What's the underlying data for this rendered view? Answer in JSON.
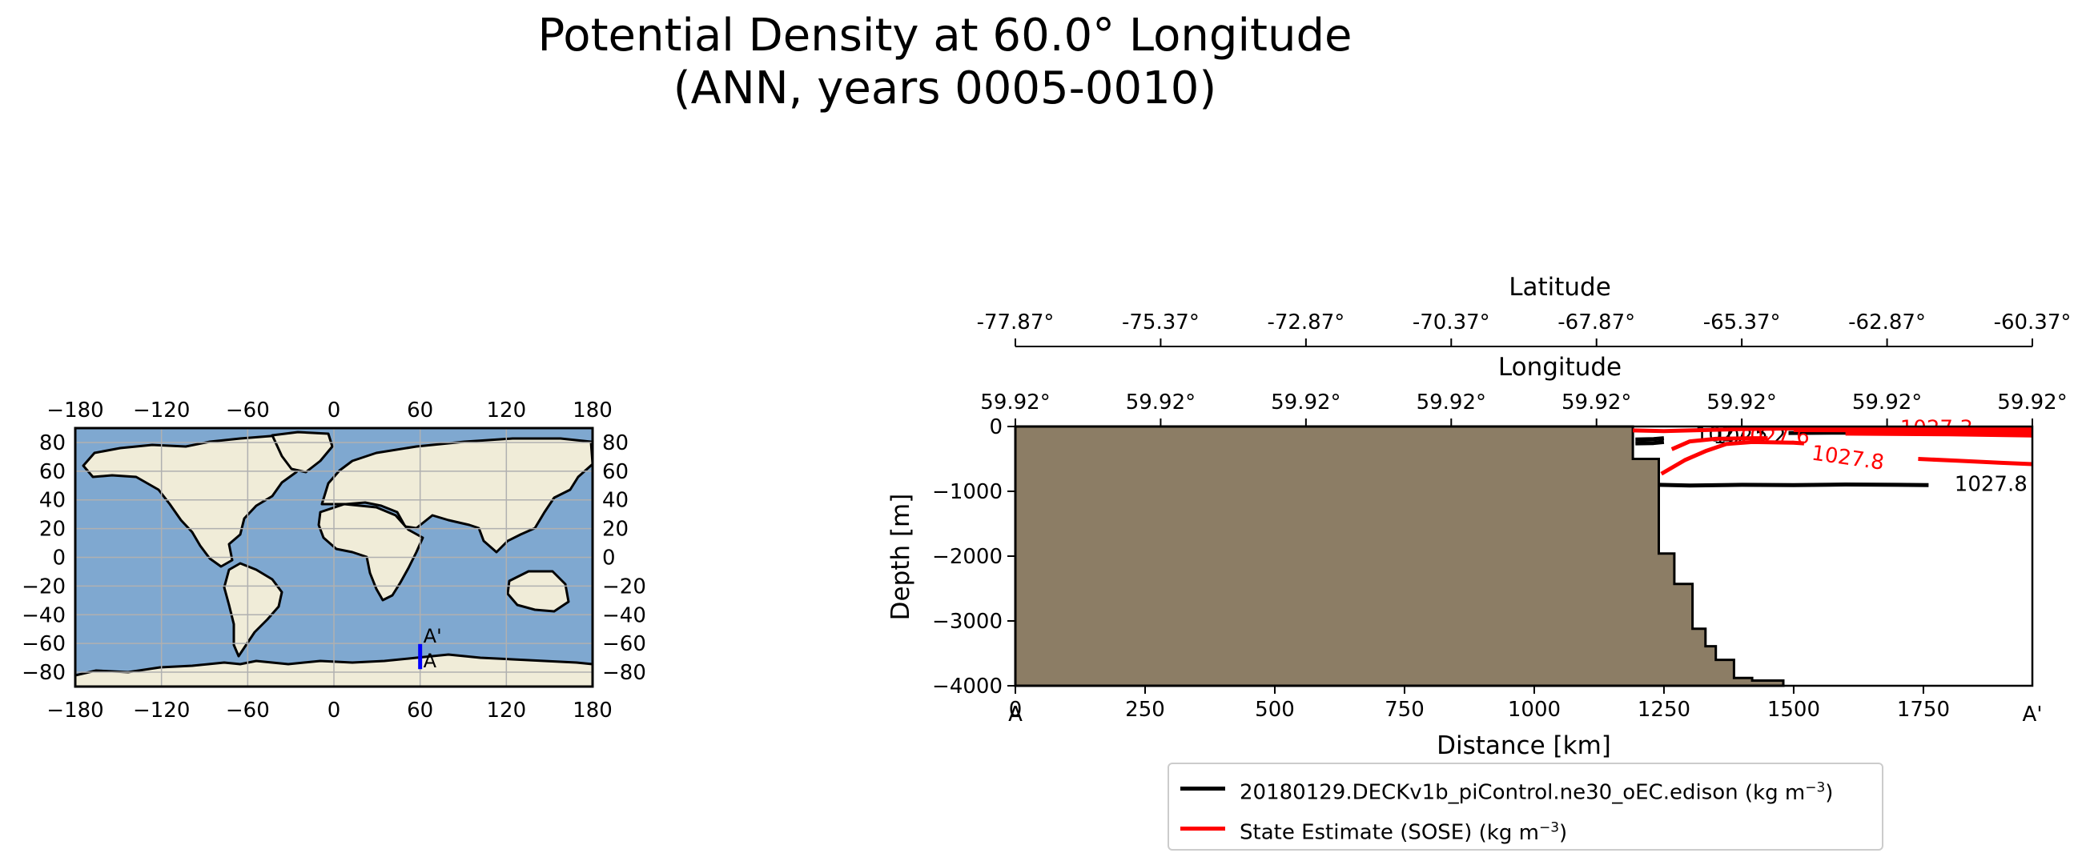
{
  "figure": {
    "title_line1": "Potential Density at 60.0° Longitude",
    "title_line2": "(ANN, years 0005-0010)"
  },
  "colors": {
    "ocean": "#7fa8d0",
    "land": "#f0ecd8",
    "bathymetry": "#8c7d65",
    "model_contour": "#000000",
    "obs_contour": "#ff0000",
    "transect": "#0000ff"
  },
  "map": {
    "lon_ticks": [
      "−180",
      "−120",
      "−60",
      "0",
      "60",
      "120",
      "180"
    ],
    "lat_ticks": [
      "80",
      "60",
      "40",
      "20",
      "0",
      "−20",
      "−40",
      "−60",
      "−80"
    ],
    "lon_values": [
      -180,
      -120,
      -60,
      0,
      60,
      120,
      180
    ],
    "lat_values": [
      80,
      60,
      40,
      20,
      0,
      -20,
      -40,
      -60,
      -80
    ],
    "transect": {
      "lon": 60,
      "lat_start": -77.87,
      "lat_end": -60.37,
      "start_label": "A",
      "end_label": "A'"
    }
  },
  "chart_data": {
    "type": "line",
    "title": "Potential Density at 60.0° Longitude (ANN, years 0005-0010)",
    "xlabel": "Distance [km]",
    "ylabel": "Depth [m]",
    "xlim": [
      0,
      1960
    ],
    "ylim": [
      -4000,
      0
    ],
    "x_ticks": [
      0,
      250,
      500,
      750,
      1000,
      1250,
      1500,
      1750
    ],
    "x_tick_labels": [
      "0",
      "250",
      "500",
      "750",
      "1000",
      "1250",
      "1500",
      "1750"
    ],
    "y_ticks": [
      0,
      -1000,
      -2000,
      -3000,
      -4000
    ],
    "y_tick_labels": [
      "0",
      "−1000",
      "−2000",
      "−3000",
      "−4000"
    ],
    "start_label": "A",
    "end_label": "A'",
    "top_axes": [
      {
        "label": "Latitude",
        "tick_labels": [
          "-77.87°",
          "-75.37°",
          "-72.87°",
          "-70.37°",
          "-67.87°",
          "-65.37°",
          "-62.87°",
          "-60.37°"
        ]
      },
      {
        "label": "Longitude",
        "tick_labels": [
          "59.92°",
          "59.92°",
          "59.92°",
          "59.92°",
          "59.92°",
          "59.92°",
          "59.92°",
          "59.92°"
        ]
      }
    ],
    "bathymetry": [
      [
        0,
        -4000
      ],
      [
        0,
        0
      ],
      [
        1190,
        0
      ],
      [
        1190,
        -500
      ],
      [
        1240,
        -500
      ],
      [
        1240,
        -1960
      ],
      [
        1270,
        -1960
      ],
      [
        1270,
        -2430
      ],
      [
        1305,
        -2430
      ],
      [
        1305,
        -3120
      ],
      [
        1330,
        -3120
      ],
      [
        1330,
        -3390
      ],
      [
        1350,
        -3390
      ],
      [
        1350,
        -3600
      ],
      [
        1385,
        -3600
      ],
      [
        1385,
        -3880
      ],
      [
        1420,
        -3880
      ],
      [
        1420,
        -3920
      ],
      [
        1480,
        -3920
      ],
      [
        1480,
        -4000
      ]
    ],
    "series": [
      {
        "name": "20180129.DECKv1b_piControl.ne30_oEC.edison",
        "units_base": "(kg m",
        "units_exp": "−3",
        "units_close": ")",
        "color": "#000000",
        "contours": [
          {
            "level": "1027.8",
            "label_at": [
              1810,
              -880
            ],
            "points": [
              [
                1240,
                -900
              ],
              [
                1300,
                -910
              ],
              [
                1400,
                -900
              ],
              [
                1500,
                -905
              ],
              [
                1600,
                -895
              ],
              [
                1700,
                -900
              ],
              [
                1760,
                -905
              ]
            ]
          },
          {
            "level": "1027.5",
            "label_at": [
              1310,
              -120
            ],
            "points": [
              [
                1195,
                -200
              ],
              [
                1230,
                -195
              ],
              [
                1250,
                -180
              ]
            ]
          },
          {
            "level": "1027.2",
            "label_at": [
              1345,
              -150
            ],
            "points": [
              [
                1195,
                -260
              ],
              [
                1230,
                -255
              ],
              [
                1250,
                -240
              ]
            ]
          },
          {
            "level": "1027.6",
            "label_at": null,
            "points": [
              [
                1490,
                -100
              ],
              [
                1600,
                -95
              ],
              [
                1700,
                -92
              ],
              [
                1820,
                -90
              ],
              [
                1960,
                -88
              ]
            ]
          }
        ]
      },
      {
        "name": "State Estimate (SOSE)",
        "units_base": "(kg m",
        "units_exp": "−3",
        "units_close": ")",
        "color": "#ff0000",
        "contours": [
          {
            "level": "1027.8",
            "label_at": [
              1535,
              -400
            ],
            "points": [
              [
                1245,
                -730
              ],
              [
                1290,
                -520
              ],
              [
                1330,
                -380
              ],
              [
                1370,
                -270
              ],
              [
                1420,
                -240
              ],
              [
                1500,
                -250
              ],
              [
                1520,
                -260
              ]
            ]
          },
          {
            "level": "1027.8",
            "label_at": null,
            "points": [
              [
                1740,
                -500
              ],
              [
                1820,
                -530
              ],
              [
                1900,
                -560
              ],
              [
                1960,
                -580
              ]
            ]
          },
          {
            "level": "1027.6",
            "label_at": [
              1390,
              -150
            ],
            "points": [
              [
                1265,
                -350
              ],
              [
                1300,
                -230
              ],
              [
                1350,
                -190
              ],
              [
                1420,
                -180
              ],
              [
                1450,
                -180
              ]
            ]
          },
          {
            "level": "1027.3",
            "label_at": [
              1705,
              -20
            ],
            "points": [
              [
                1190,
                -60
              ],
              [
                1250,
                -70
              ],
              [
                1300,
                -60
              ],
              [
                1400,
                -40
              ],
              [
                1500,
                -30
              ],
              [
                1600,
                -30
              ],
              [
                1700,
                -25
              ],
              [
                1960,
                -30
              ]
            ]
          },
          {
            "level": "",
            "label_at": null,
            "points": [
              [
                1500,
                -55
              ],
              [
                1700,
                -60
              ],
              [
                1960,
                -70
              ]
            ]
          },
          {
            "level": "",
            "label_at": null,
            "points": [
              [
                1600,
                -85
              ],
              [
                1800,
                -90
              ],
              [
                1960,
                -110
              ]
            ]
          },
          {
            "level": "",
            "label_at": null,
            "points": [
              [
                1600,
                -110
              ],
              [
                1800,
                -120
              ],
              [
                1960,
                -140
              ]
            ]
          }
        ]
      }
    ],
    "legend_position": "bottom-center"
  }
}
